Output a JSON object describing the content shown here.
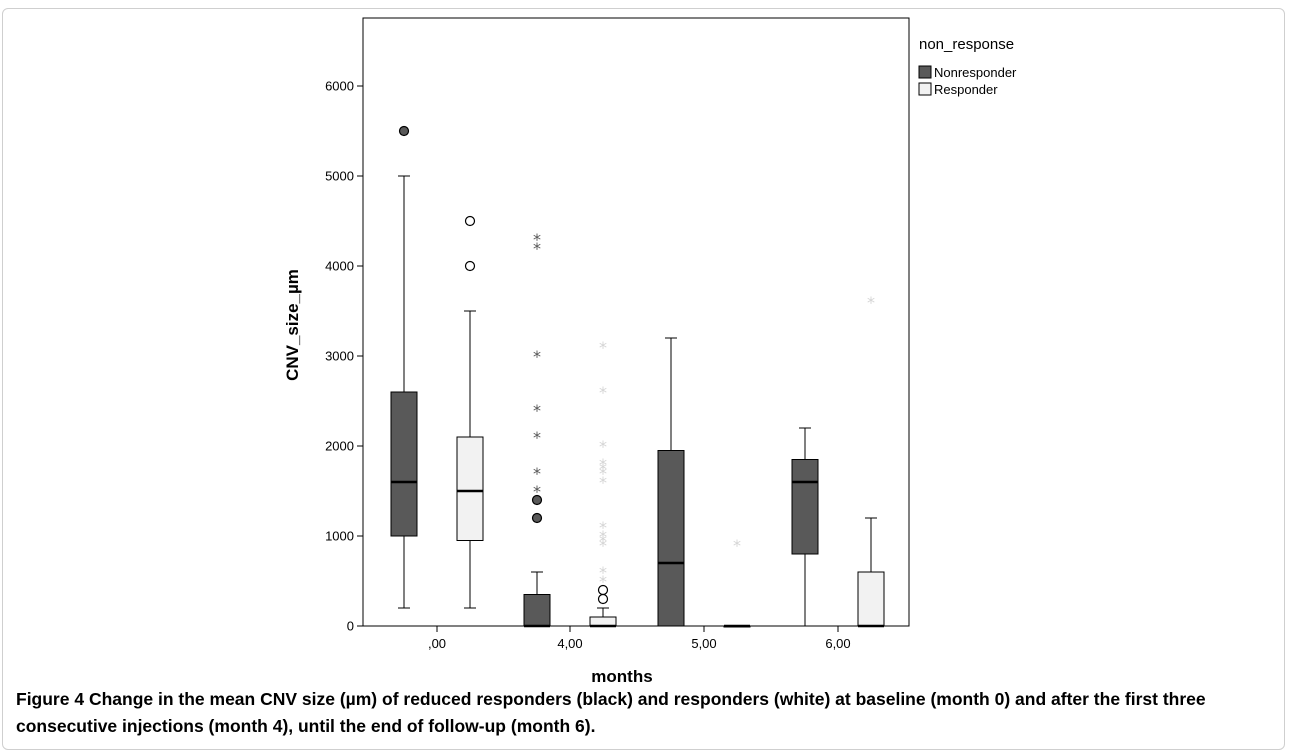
{
  "chart_data": {
    "type": "boxplot",
    "xlabel": "months",
    "ylabel": "CNV_size_µm",
    "ylim": [
      0,
      6600
    ],
    "yticks": [
      0,
      1000,
      2000,
      3000,
      4000,
      5000,
      6000
    ],
    "categories": [
      ",00",
      "4,00",
      "5,00",
      "6,00"
    ],
    "legend": {
      "title": "non_response",
      "placement": "top-right",
      "entries": [
        {
          "name": "Nonresponder",
          "color": "#595959"
        },
        {
          "name": "Responder",
          "color": "#f2f2f2"
        }
      ]
    },
    "groups": [
      {
        "category": ",00",
        "series": "Nonresponder",
        "whisker_low": 200,
        "q1": 1000,
        "median": 1600,
        "q3": 2600,
        "whisker_high": 5000,
        "outliers": [
          5500
        ],
        "extremes": []
      },
      {
        "category": ",00",
        "series": "Responder",
        "whisker_low": 200,
        "q1": 950,
        "median": 1500,
        "q3": 2100,
        "whisker_high": 3500,
        "outliers": [
          4500,
          4000
        ],
        "extremes": []
      },
      {
        "category": "4,00",
        "series": "Nonresponder",
        "whisker_low": 0,
        "q1": 0,
        "median": 0,
        "q3": 350,
        "whisker_high": 600,
        "outliers": [
          1400,
          1200
        ],
        "extremes": [
          4300,
          4200,
          3000,
          2400,
          2100,
          1700,
          1500
        ]
      },
      {
        "category": "4,00",
        "series": "Responder",
        "whisker_low": 0,
        "q1": 0,
        "median": 0,
        "q3": 100,
        "whisker_high": 200,
        "outliers": [
          400,
          300
        ],
        "extremes": [
          3100,
          2600,
          2000,
          1800,
          1750,
          1700,
          1600,
          1100,
          1000,
          950,
          900,
          600,
          500
        ]
      },
      {
        "category": "5,00",
        "series": "Nonresponder",
        "whisker_low": 0,
        "q1": 0,
        "median": 700,
        "q3": 1950,
        "whisker_high": 3200,
        "outliers": [],
        "extremes": []
      },
      {
        "category": "5,00",
        "series": "Responder",
        "whisker_low": 0,
        "q1": 0,
        "median": 0,
        "q3": 0,
        "whisker_high": 0,
        "outliers": [],
        "extremes": [
          900
        ]
      },
      {
        "category": "6,00",
        "series": "Nonresponder",
        "whisker_low": 0,
        "q1": 800,
        "median": 1600,
        "q3": 1850,
        "whisker_high": 2200,
        "outliers": [],
        "extremes": []
      },
      {
        "category": "6,00",
        "series": "Responder",
        "whisker_low": 0,
        "q1": 0,
        "median": 0,
        "q3": 600,
        "whisker_high": 1200,
        "outliers": [],
        "extremes": [
          3600
        ]
      }
    ]
  },
  "caption": {
    "label": "Figure 4",
    "text": "Change in the mean CNV size (µm) of reduced responders (black) and responders (white) at baseline (month 0) and after the first three consecutive injections (month 4), until the end of follow-up (month 6)."
  }
}
